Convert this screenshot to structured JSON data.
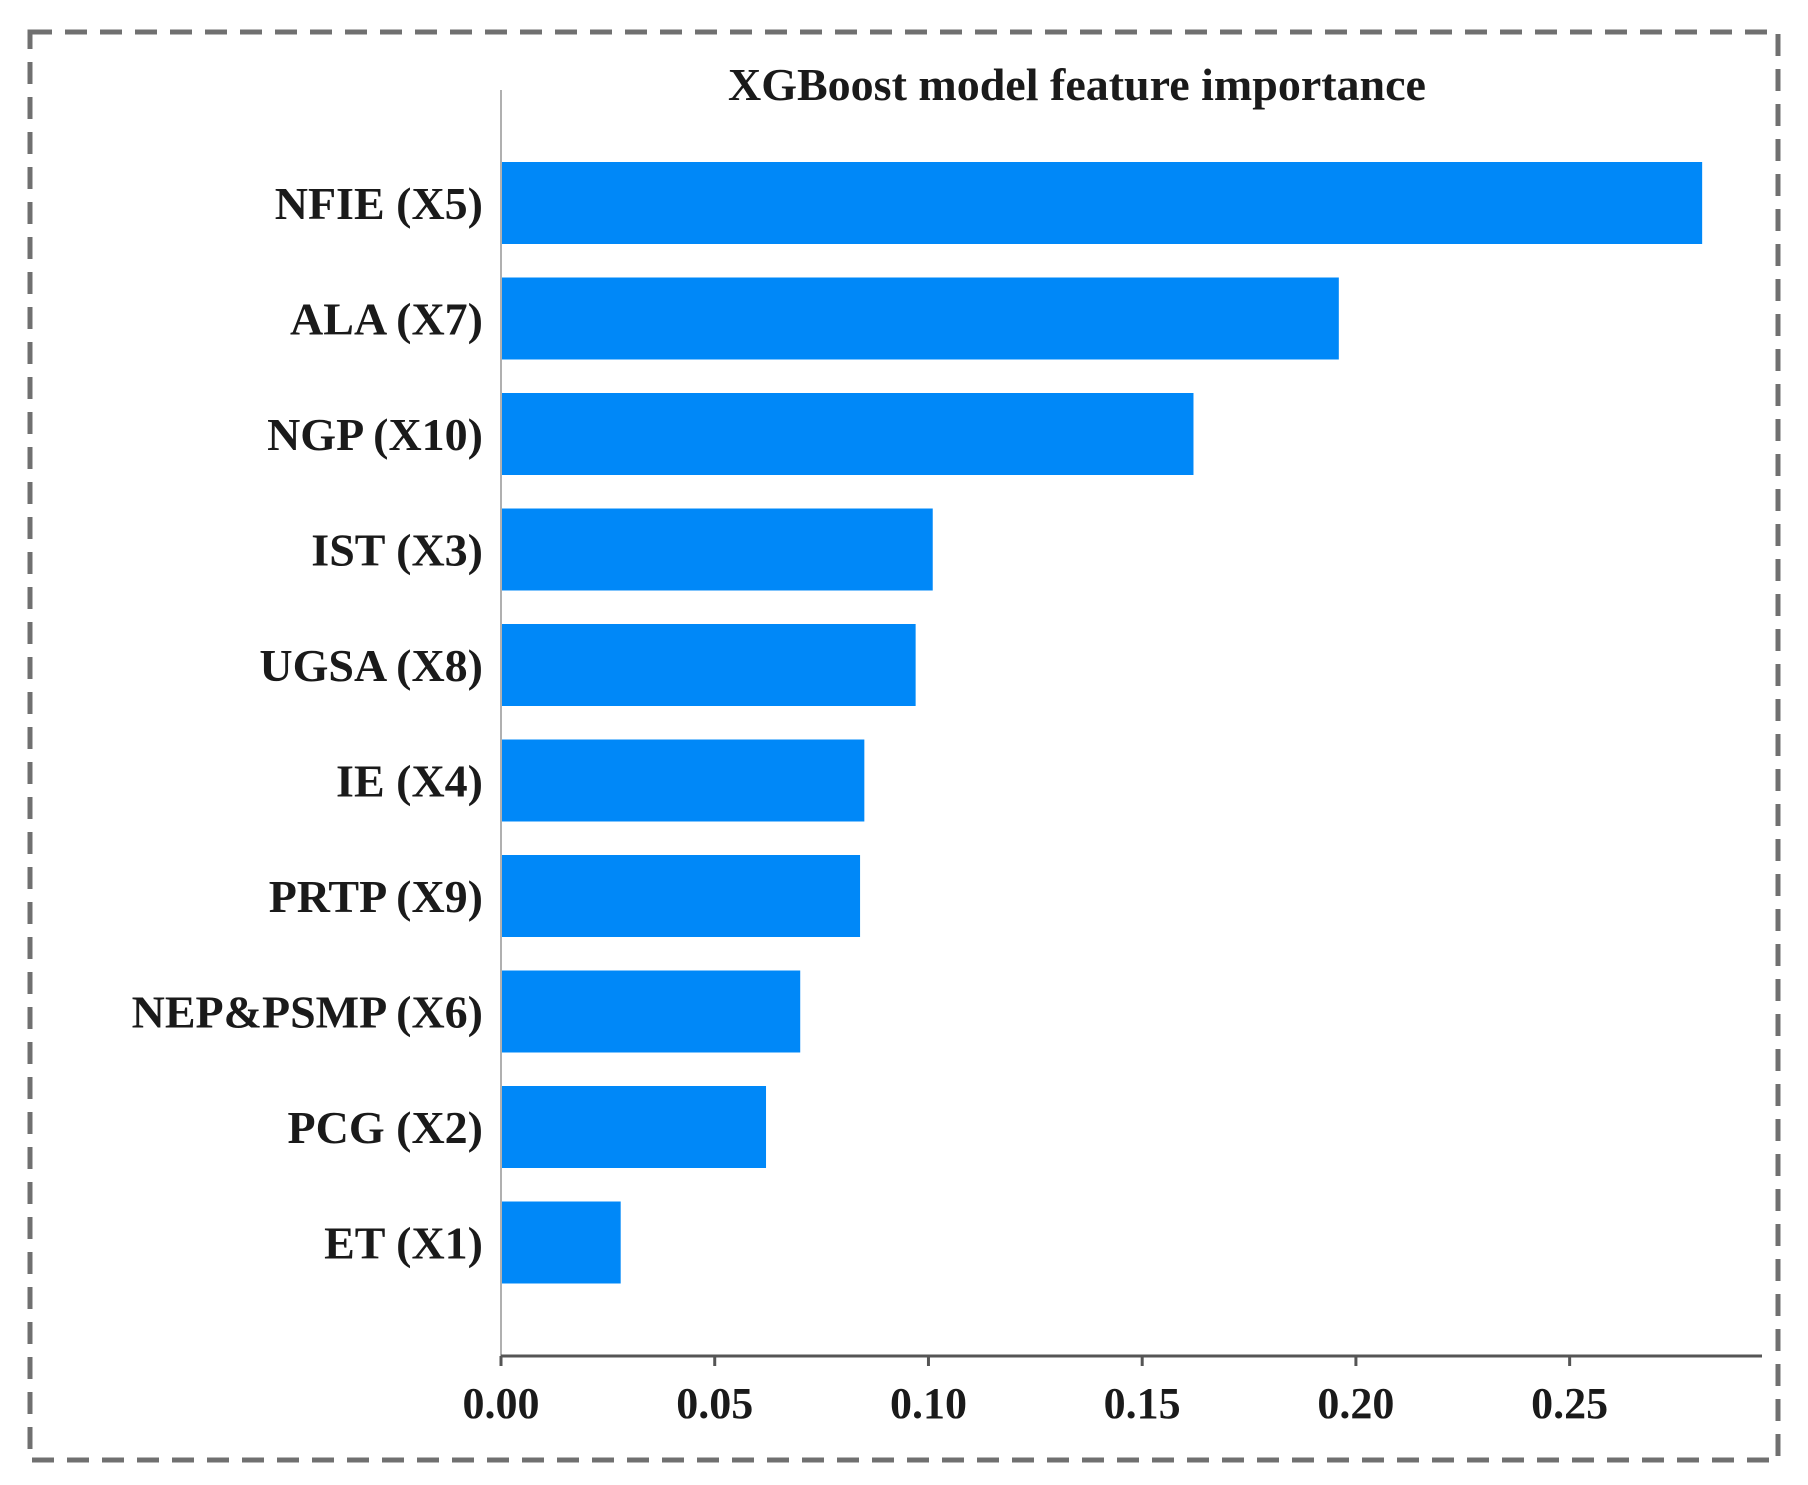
{
  "chart_data": {
    "type": "bar",
    "orientation": "horizontal",
    "title": "XGBoost model feature importance",
    "xlabel": "",
    "ylabel": "",
    "categories": [
      "NFIE (X5)",
      "ALA (X7)",
      "NGP (X10)",
      "IST (X3)",
      "UGSA (X8)",
      "IE (X4)",
      "PRTP (X9)",
      "NEP&PSMP (X6)",
      "PCG (X2)",
      "ET (X1)"
    ],
    "values": [
      0.281,
      0.196,
      0.162,
      0.101,
      0.097,
      0.085,
      0.084,
      0.07,
      0.062,
      0.028
    ],
    "xlim": [
      0,
      0.295
    ],
    "xticks": [
      0.0,
      0.05,
      0.1,
      0.15,
      0.2,
      0.25
    ],
    "xtick_labels": [
      "0.00",
      "0.05",
      "0.10",
      "0.15",
      "0.20",
      "0.25"
    ],
    "bar_color": "#0088f8",
    "grid": false,
    "legend": "none",
    "frame": "dashed-border"
  }
}
